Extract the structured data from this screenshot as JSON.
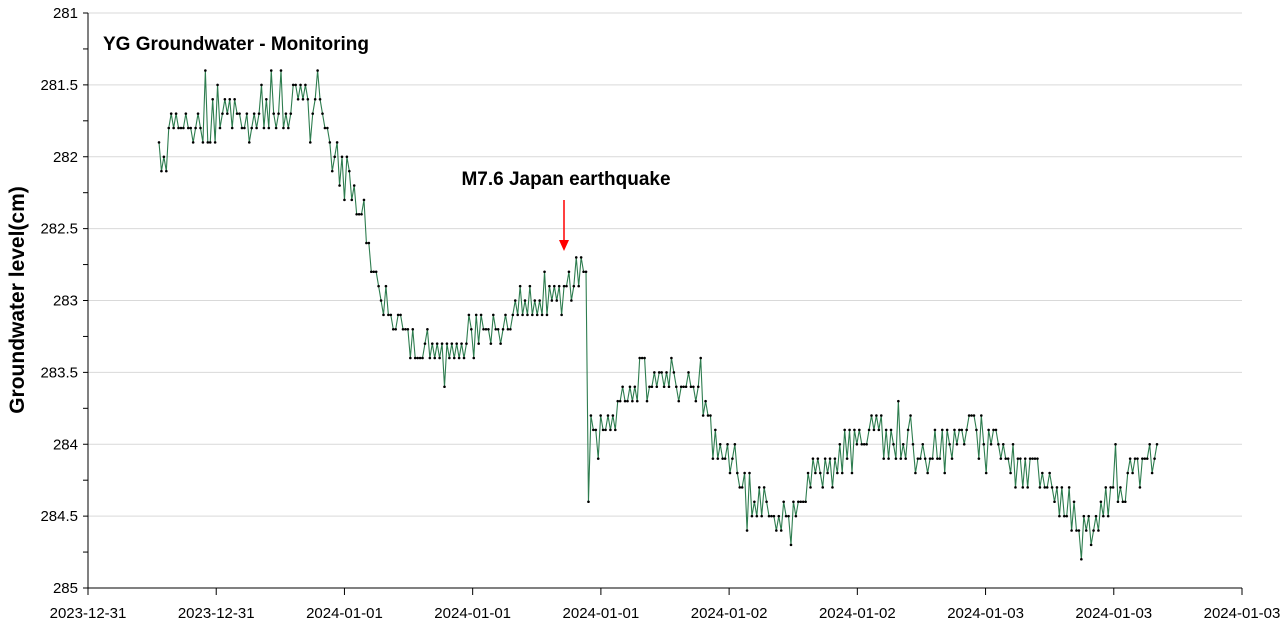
{
  "chart_data": {
    "type": "line",
    "title": "YG Groundwater - Monitoring",
    "xlabel": "",
    "ylabel": "Groundwater level(cm)",
    "y_axis_inverted": true,
    "ylim": [
      281,
      285
    ],
    "y_ticks": [
      "281",
      "281.5",
      "282",
      "282.5",
      "283",
      "283.5",
      "284",
      "284.5",
      "285"
    ],
    "y_tick_values": [
      281,
      281.5,
      282,
      282.5,
      283,
      283.5,
      284,
      284.5,
      285
    ],
    "x_ticks": [
      "2023-12-31",
      "2023-12-31",
      "2024-01-01",
      "2024-01-01",
      "2024-01-01",
      "2024-01-02",
      "2024-01-02",
      "2024-01-03",
      "2024-01-03",
      "2024-01-03"
    ],
    "grid": true,
    "legend": "none",
    "line_color": "#2e7d4f",
    "marker_color": "#000000",
    "annotation": {
      "text": "M7.6 Japan earthquake",
      "arrow_color": "#ff0000"
    },
    "series": [
      {
        "values": [
          281.9,
          282.1,
          282,
          282.1,
          281.8,
          281.7,
          281.8,
          281.7,
          281.8,
          281.8,
          281.8,
          281.7,
          281.8,
          281.8,
          281.9,
          281.8,
          281.7,
          281.8,
          281.9,
          281.4,
          281.9,
          281.9,
          281.6,
          281.9,
          281.5,
          281.8,
          281.7,
          281.6,
          281.7,
          281.6,
          281.8,
          281.6,
          281.7,
          281.7,
          281.8,
          281.8,
          281.7,
          281.9,
          281.8,
          281.7,
          281.8,
          281.7,
          281.5,
          281.8,
          281.6,
          281.8,
          281.4,
          281.7,
          281.8,
          281.7,
          281.4,
          281.8,
          281.7,
          281.8,
          281.7,
          281.5,
          281.5,
          281.6,
          281.5,
          281.6,
          281.5,
          281.6,
          281.9,
          281.7,
          281.6,
          281.4,
          281.6,
          281.7,
          281.8,
          281.8,
          281.9,
          282.1,
          282,
          281.9,
          282.2,
          282,
          282.3,
          282,
          282.1,
          282.3,
          282.2,
          282.4,
          282.4,
          282.4,
          282.3,
          282.6,
          282.6,
          282.8,
          282.8,
          282.8,
          282.9,
          283,
          283.1,
          282.9,
          283.1,
          283.1,
          283.2,
          283.2,
          283.1,
          283.1,
          283.2,
          283.2,
          283.2,
          283.4,
          283.2,
          283.4,
          283.4,
          283.4,
          283.4,
          283.3,
          283.2,
          283.4,
          283.3,
          283.4,
          283.3,
          283.4,
          283.3,
          283.6,
          283.3,
          283.4,
          283.3,
          283.4,
          283.3,
          283.4,
          283.3,
          283.4,
          283.3,
          283.1,
          283.2,
          283.4,
          283.1,
          283.3,
          283.1,
          283.2,
          283.2,
          283.2,
          283.3,
          283.1,
          283.2,
          283.2,
          283.3,
          283.2,
          283.1,
          283.2,
          283.2,
          283.1,
          283,
          283.1,
          282.9,
          283.1,
          283,
          283.1,
          282.9,
          283.1,
          283,
          283.1,
          283,
          283.1,
          282.8,
          283.1,
          282.9,
          283,
          282.9,
          283,
          282.9,
          283.1,
          282.9,
          282.9,
          282.8,
          283,
          282.9,
          282.7,
          282.9,
          282.7,
          282.8,
          282.8,
          284.4,
          283.8,
          283.9,
          283.9,
          284.1,
          283.8,
          283.9,
          283.9,
          283.8,
          283.9,
          283.8,
          283.9,
          283.7,
          283.7,
          283.6,
          283.7,
          283.7,
          283.6,
          283.7,
          283.6,
          283.7,
          283.4,
          283.4,
          283.4,
          283.7,
          283.6,
          283.6,
          283.5,
          283.6,
          283.5,
          283.5,
          283.6,
          283.5,
          283.6,
          283.4,
          283.5,
          283.6,
          283.7,
          283.6,
          283.6,
          283.6,
          283.5,
          283.6,
          283.6,
          283.7,
          283.6,
          283.4,
          283.8,
          283.7,
          283.8,
          283.8,
          284.1,
          283.9,
          284.1,
          284,
          284.1,
          284.1,
          284,
          284.2,
          284.1,
          284,
          284.2,
          284.3,
          284.3,
          284.2,
          284.6,
          284.2,
          284.5,
          284.4,
          284.5,
          284.3,
          284.5,
          284.3,
          284.4,
          284.5,
          284.5,
          284.5,
          284.6,
          284.5,
          284.6,
          284.4,
          284.5,
          284.5,
          284.7,
          284.4,
          284.5,
          284.4,
          284.4,
          284.4,
          284.4,
          284.2,
          284.3,
          284.1,
          284.2,
          284.1,
          284.2,
          284.3,
          284.1,
          284.2,
          284.1,
          284.3,
          284.1,
          284.2,
          284,
          284.2,
          283.9,
          284.1,
          283.9,
          284.2,
          283.9,
          284,
          283.9,
          284,
          284,
          284,
          283.9,
          283.8,
          283.9,
          283.8,
          283.9,
          283.8,
          284.1,
          283.9,
          284.1,
          283.9,
          284,
          284.1,
          283.7,
          284.1,
          284,
          284.1,
          283.9,
          283.8,
          284,
          284.2,
          284.1,
          284.1,
          284,
          284.1,
          284.2,
          284.1,
          284.1,
          283.9,
          284.1,
          284.1,
          283.9,
          284.2,
          283.9,
          284,
          284.1,
          283.9,
          284,
          283.9,
          283.9,
          284,
          283.9,
          283.8,
          283.8,
          283.8,
          283.9,
          284.1,
          283.8,
          284,
          284.2,
          283.9,
          284,
          283.9,
          283.9,
          284,
          284.1,
          284,
          284.1,
          284.1,
          284.2,
          284,
          284.3,
          284.1,
          284.1,
          284.3,
          284.1,
          284.3,
          284.1,
          284.1,
          284.1,
          284.1,
          284.3,
          284.2,
          284.3,
          284.3,
          284.2,
          284.3,
          284.4,
          284.3,
          284.5,
          284.3,
          284.5,
          284.5,
          284.3,
          284.6,
          284.4,
          284.6,
          284.6,
          284.8,
          284.5,
          284.6,
          284.5,
          284.7,
          284.6,
          284.5,
          284.6,
          284.4,
          284.5,
          284.3,
          284.5,
          284.3,
          284.3,
          284,
          284.4,
          284.3,
          284.4,
          284.4,
          284.2,
          284.1,
          284.2,
          284.1,
          284.1,
          284.3,
          284.1,
          284.1,
          284.1,
          284,
          284.2,
          284.1,
          284
        ]
      }
    ]
  }
}
